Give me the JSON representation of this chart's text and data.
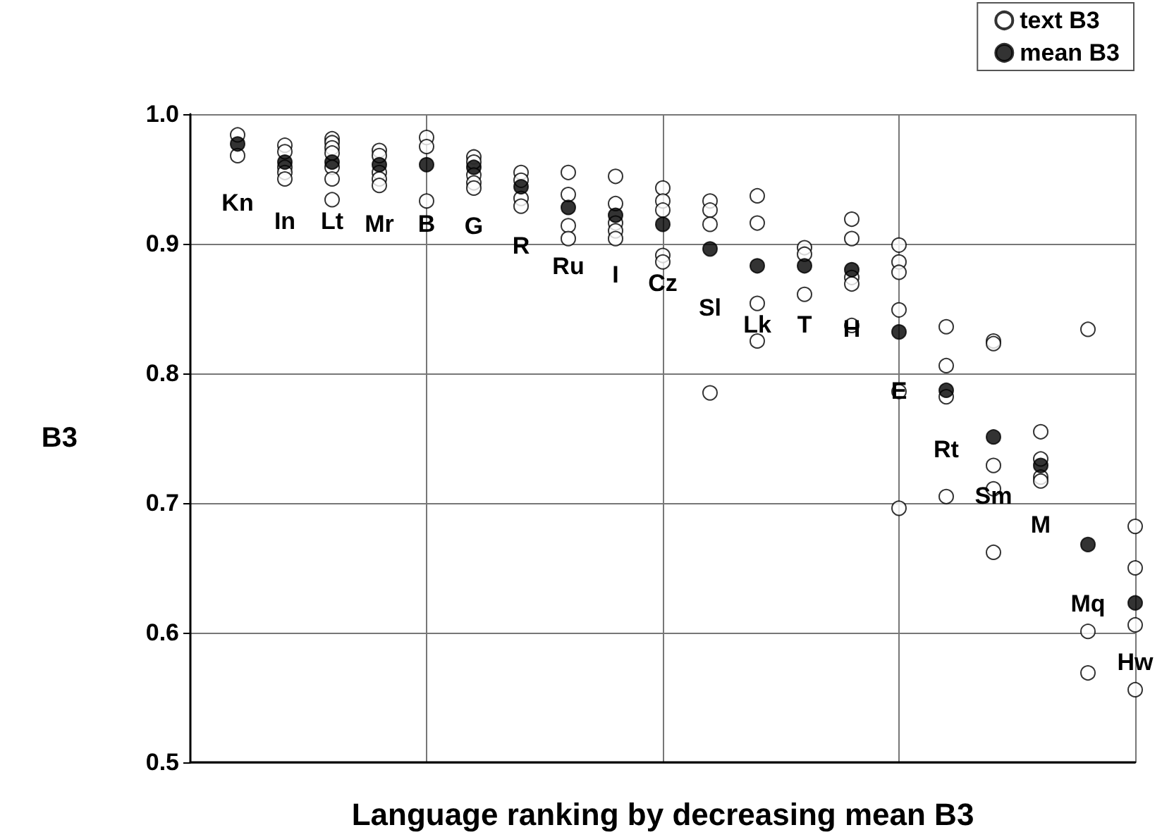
{
  "chart_data": {
    "type": "scatter",
    "xlabel": "Language ranking by decreasing mean B3",
    "ylabel": "B3",
    "categories": [
      "Kn",
      "In",
      "Lt",
      "Mr",
      "B",
      "G",
      "R",
      "Ru",
      "I",
      "Cz",
      "Sl",
      "Lk",
      "T",
      "H",
      "E",
      "Rt",
      "Sm",
      "M",
      "Mq",
      "Hw"
    ],
    "ylim": [
      0.5,
      1.0
    ],
    "yticks": [
      {
        "value": 0.5,
        "label": "0.5"
      },
      {
        "value": 0.6,
        "label": "0.6"
      },
      {
        "value": 0.7,
        "label": "0.7"
      },
      {
        "value": 0.8,
        "label": "0.8"
      },
      {
        "value": 0.9,
        "label": "0.9"
      },
      {
        "value": 1.0,
        "label": "1.0"
      }
    ],
    "grid": true,
    "legend": "top right",
    "marker": "circle",
    "series": [
      {
        "name": "text B3",
        "color": "#ffffff",
        "x": [
          "Kn",
          "Kn",
          "In",
          "In",
          "In",
          "In",
          "In",
          "Lt",
          "Lt",
          "Lt",
          "Lt",
          "Lt",
          "Lt",
          "Lt",
          "Mr",
          "Mr",
          "Mr",
          "Mr",
          "Mr",
          "B",
          "B",
          "B",
          "G",
          "G",
          "G",
          "G",
          "G",
          "R",
          "R",
          "R",
          "R",
          "Ru",
          "Ru",
          "Ru",
          "Ru",
          "I",
          "I",
          "I",
          "I",
          "I",
          "Cz",
          "Cz",
          "Cz",
          "Cz",
          "Cz",
          "Sl",
          "Sl",
          "Sl",
          "Sl",
          "Lk",
          "Lk",
          "Lk",
          "Lk",
          "T",
          "T",
          "T",
          "H",
          "H",
          "H",
          "H",
          "H",
          "E",
          "E",
          "E",
          "E",
          "E",
          "E",
          "Rt",
          "Rt",
          "Rt",
          "Rt",
          "Sm",
          "Sm",
          "Sm",
          "Sm",
          "Sm",
          "M",
          "M",
          "M",
          "M",
          "Mq",
          "Mq",
          "Mq",
          "Hw",
          "Hw",
          "Hw",
          "Hw"
        ],
        "values": [
          0.984,
          0.968,
          0.976,
          0.971,
          0.959,
          0.955,
          0.95,
          0.981,
          0.978,
          0.974,
          0.97,
          0.959,
          0.95,
          0.934,
          0.972,
          0.968,
          0.955,
          0.95,
          0.945,
          0.982,
          0.975,
          0.933,
          0.967,
          0.963,
          0.953,
          0.947,
          0.943,
          0.955,
          0.949,
          0.935,
          0.929,
          0.955,
          0.938,
          0.914,
          0.904,
          0.952,
          0.931,
          0.916,
          0.91,
          0.904,
          0.943,
          0.933,
          0.926,
          0.891,
          0.886,
          0.933,
          0.926,
          0.915,
          0.785,
          0.937,
          0.916,
          0.854,
          0.825,
          0.897,
          0.892,
          0.861,
          0.919,
          0.904,
          0.874,
          0.869,
          0.837,
          0.899,
          0.886,
          0.878,
          0.849,
          0.786,
          0.696,
          0.836,
          0.806,
          0.782,
          0.705,
          0.825,
          0.823,
          0.729,
          0.711,
          0.662,
          0.755,
          0.734,
          0.72,
          0.717,
          0.834,
          0.601,
          0.569,
          0.682,
          0.65,
          0.606,
          0.556
        ]
      },
      {
        "name": "mean B3",
        "color": "#000000",
        "values": [
          0.977,
          0.963,
          0.963,
          0.961,
          0.961,
          0.959,
          0.944,
          0.928,
          0.922,
          0.915,
          0.896,
          0.883,
          0.883,
          0.88,
          0.832,
          0.787,
          0.751,
          0.729,
          0.668,
          0.623
        ]
      }
    ]
  }
}
